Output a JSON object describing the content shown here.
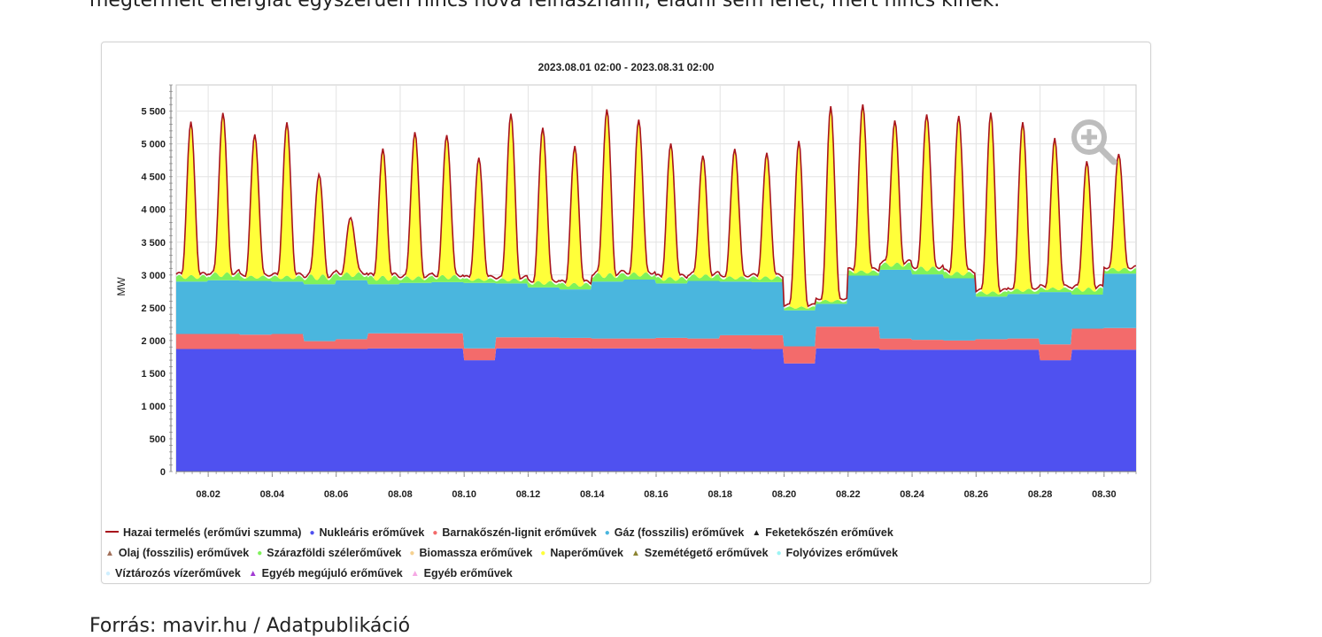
{
  "document": {
    "intro_text": "megtermelt energiát egyszerűen nincs hová felhasználni, eladni sem lehet, mert nincs kinek.",
    "source_text": "Forrás: mavir.hu / Adatpublikáció"
  },
  "chart_data": {
    "type": "area",
    "stacked": true,
    "title": "2023.08.01 02:00 - 2023.08.31 02:00",
    "xlabel": "",
    "ylabel": "MW",
    "ylim": [
      0,
      5900
    ],
    "xlim": [
      1,
      31
    ],
    "yticks": [
      0,
      500,
      1000,
      1500,
      2000,
      2500,
      3000,
      3500,
      4000,
      4500,
      5000,
      5500
    ],
    "ytick_labels": [
      "0",
      "500",
      "1 000",
      "1 500",
      "2 000",
      "2 500",
      "3 000",
      "3 500",
      "4 000",
      "4 500",
      "5 000",
      "5 500"
    ],
    "xticks": [
      2,
      4,
      6,
      8,
      10,
      12,
      14,
      16,
      18,
      20,
      22,
      24,
      26,
      28,
      30
    ],
    "xtick_labels": [
      "08.02",
      "08.04",
      "08.06",
      "08.08",
      "08.10",
      "08.12",
      "08.14",
      "08.16",
      "08.18",
      "08.20",
      "08.22",
      "08.24",
      "08.26",
      "08.28",
      "08.30"
    ],
    "grid": true,
    "legend_position": "bottom",
    "series": [
      {
        "name": "Hazai termelés (erőművi szumma)",
        "kind": "line",
        "color": "#a8141c",
        "daily_peak": [
          5300,
          5500,
          5150,
          5300,
          4550,
          3900,
          4900,
          5200,
          5150,
          4800,
          5500,
          5250,
          4950,
          5600,
          5400,
          5000,
          4800,
          4950,
          4850,
          5000,
          5400,
          5600,
          5350,
          5500,
          5450,
          5250,
          5300,
          5150,
          4750,
          4850
        ],
        "daily_base": [
          3000,
          3050,
          3000,
          3000,
          3000,
          3050,
          3000,
          3000,
          3000,
          3000,
          3000,
          2900,
          2900,
          3100,
          3050,
          3000,
          3000,
          3000,
          3000,
          2500,
          2450,
          3100,
          3200,
          3150,
          3100,
          2550,
          2750,
          2900,
          2850,
          3100
        ]
      },
      {
        "name": "Nukleáris erőművek",
        "marker": "circle",
        "color": "#4f51f0",
        "daily_values": [
          1870,
          1870,
          1870,
          1870,
          1870,
          1870,
          1880,
          1880,
          1880,
          1700,
          1880,
          1880,
          1880,
          1880,
          1880,
          1880,
          1880,
          1880,
          1870,
          1650,
          1880,
          1880,
          1860,
          1860,
          1860,
          1860,
          1860,
          1700,
          1860,
          1860
        ]
      },
      {
        "name": "Barnakőszén-lignit erőművek",
        "marker": "circle",
        "color": "#f36b6b",
        "daily_values": [
          230,
          230,
          220,
          230,
          120,
          150,
          230,
          230,
          230,
          180,
          170,
          170,
          160,
          150,
          150,
          160,
          150,
          200,
          210,
          260,
          330,
          330,
          170,
          150,
          140,
          160,
          170,
          240,
          320,
          330
        ]
      },
      {
        "name": "Gáz (fosszilis) erőművek",
        "marker": "circle",
        "color": "#4ab6de",
        "daily_values": [
          800,
          820,
          820,
          800,
          870,
          900,
          750,
          770,
          780,
          1000,
          820,
          760,
          740,
          870,
          900,
          830,
          880,
          820,
          810,
          550,
          350,
          780,
          1050,
          1000,
          950,
          650,
          680,
          800,
          520,
          830
        ]
      },
      {
        "name": "Feketekőszén erőművek",
        "marker": "triangle",
        "color": "#222222",
        "daily_values": []
      },
      {
        "name": "Olaj (fosszilis) erőművek",
        "marker": "triangle",
        "color": "#a2705a",
        "daily_values": []
      },
      {
        "name": "Szárazföldi szélerőművek",
        "marker": "circle",
        "color": "#7ff25a",
        "daily_values": [
          100,
          120,
          80,
          90,
          150,
          120,
          130,
          100,
          110,
          70,
          80,
          100,
          100,
          130,
          110,
          100,
          100,
          80,
          90,
          60,
          60,
          80,
          110,
          120,
          100,
          80,
          80,
          70,
          110,
          90
        ]
      },
      {
        "name": "Biomassza erőművek",
        "marker": "circle",
        "color": "#f5d190",
        "daily_values": []
      },
      {
        "name": "Naperőművek",
        "marker": "circle",
        "color": "#ffff3a",
        "daily_values": [
          2300,
          2450,
          2150,
          2300,
          1550,
          850,
          1900,
          2200,
          2150,
          1800,
          2500,
          2350,
          2050,
          2500,
          2350,
          2000,
          1800,
          1950,
          1850,
          2500,
          2950,
          2500,
          2150,
          2350,
          2350,
          2700,
          2550,
          2250,
          1900,
          1750
        ]
      },
      {
        "name": "Szemétégető erőművek",
        "marker": "triangle",
        "color": "#8c8431",
        "daily_values": []
      },
      {
        "name": "Folyóvizes erőművek",
        "marker": "circle",
        "color": "#9cf4f4",
        "daily_values": []
      },
      {
        "name": "Víztározós vízerőművek",
        "marker": "circle",
        "color": "#cfefff",
        "daily_values": []
      },
      {
        "name": "Egyéb megújuló erőművek",
        "marker": "triangle",
        "color": "#a23bd3",
        "daily_values": []
      },
      {
        "name": "Egyéb erőművek",
        "marker": "triangle",
        "color": "#f6a8e4",
        "daily_values": []
      }
    ]
  },
  "legend_rows": [
    [
      0,
      1,
      2,
      3,
      4
    ],
    [
      5,
      6,
      7,
      8,
      9,
      10
    ],
    [
      11,
      12,
      13
    ]
  ],
  "icons": {
    "zoom": "zoom-in-icon"
  }
}
